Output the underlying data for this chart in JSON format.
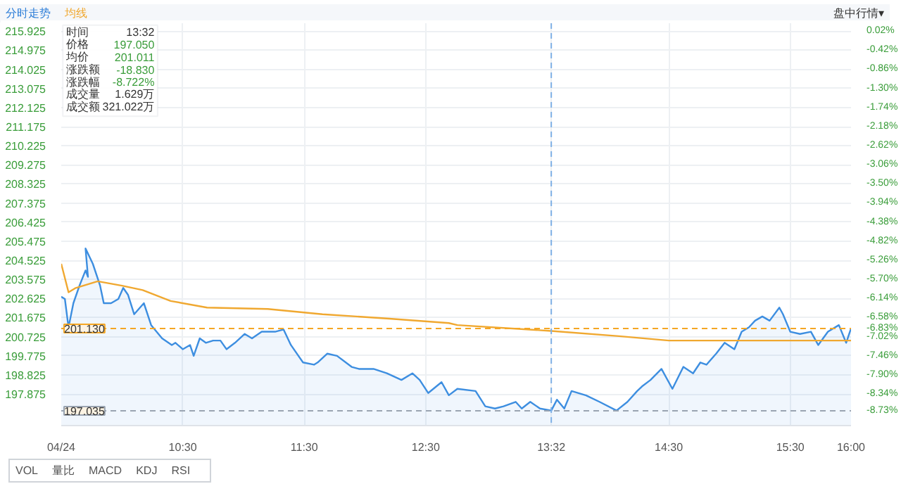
{
  "chart_data": {
    "type": "line",
    "annotations": [
      "分时走势",
      "均线",
      "盘中行情▾",
      "时间",
      "13:32",
      "价格",
      "197.050",
      "均价",
      "201.011",
      "涨跌额",
      "-18.830",
      "涨跌幅",
      "-8.722%",
      "成交量",
      "1.629万",
      "成交额",
      "321.022万",
      "VOL",
      "量比",
      "MACD",
      "KDJ",
      "RSI"
    ],
    "xlim": [
      9.5,
      16
    ],
    "xticks": [
      {
        "value": 9.5,
        "label": "04/24"
      },
      {
        "value": 10.5,
        "label": "10:30"
      },
      {
        "value": 11.5,
        "label": "11:30"
      },
      {
        "value": 12.5,
        "label": "12:30"
      },
      {
        "value": 13.533,
        "label": "13:32"
      },
      {
        "value": 14.5,
        "label": "14:30"
      },
      {
        "value": 15.5,
        "label": "15:30"
      },
      {
        "value": 16,
        "label": "16:00"
      }
    ],
    "ylim": [
      196.3,
      216.32
    ],
    "yticks": [
      215.925,
      214.975,
      214.025,
      213.075,
      212.125,
      211.175,
      210.225,
      209.275,
      208.325,
      207.375,
      206.425,
      205.475,
      204.525,
      203.575,
      202.625,
      201.675,
      200.725,
      199.775,
      198.825,
      197.875
    ],
    "y2lim": [
      -9.07,
      0.2
    ],
    "y2ticks": [
      {
        "value": 0.02,
        "label": "0.02%"
      },
      {
        "value": -0.42,
        "label": "-0.42%"
      },
      {
        "value": -0.86,
        "label": "-0.86%"
      },
      {
        "value": -1.3,
        "label": "-1.30%"
      },
      {
        "value": -1.74,
        "label": "-1.74%"
      },
      {
        "value": -2.18,
        "label": "-2.18%"
      },
      {
        "value": -2.62,
        "label": "-2.62%"
      },
      {
        "value": -3.06,
        "label": "-3.06%"
      },
      {
        "value": -3.5,
        "label": "-3.50%"
      },
      {
        "value": -3.94,
        "label": "-3.94%"
      },
      {
        "value": -4.38,
        "label": "-4.38%"
      },
      {
        "value": -4.82,
        "label": "-4.82%"
      },
      {
        "value": -5.26,
        "label": "-5.26%"
      },
      {
        "value": -5.7,
        "label": "-5.70%"
      },
      {
        "value": -6.14,
        "label": "-6.14%"
      },
      {
        "value": -6.58,
        "label": "-6.58%"
      },
      {
        "value": -6.83,
        "label": "-6.83%"
      },
      {
        "value": -7.02,
        "label": "-7.02%"
      },
      {
        "value": -7.46,
        "label": "-7.46%"
      },
      {
        "value": -7.9,
        "label": "-7.90%"
      },
      {
        "value": -8.34,
        "label": "-8.34%"
      },
      {
        "value": -8.73,
        "label": "-8.73%"
      }
    ],
    "grid": true,
    "ref_lines": [
      {
        "axis": "y",
        "value": 201.13,
        "label": "201.130",
        "color": "#f5a623",
        "line_style": "dashed"
      },
      {
        "axis": "y",
        "value": 197.035,
        "label": "197.035",
        "color": "#9aa4b1",
        "line_style": "dashed"
      },
      {
        "axis": "x",
        "value": 13.533,
        "label": null,
        "color": "#7fb0e6",
        "line_style": "dashed"
      }
    ],
    "series": [
      {
        "type": "area",
        "color": "#3d8ee0",
        "x": [
          9.5,
          9.53,
          9.56,
          9.6,
          9.65,
          9.7,
          9.72,
          9.7,
          9.76,
          9.82,
          9.85,
          9.91,
          9.97,
          10.01,
          10.05,
          10.1,
          10.18,
          10.24,
          10.33,
          10.41,
          10.44,
          10.5,
          10.56,
          10.59,
          10.64,
          10.69,
          10.75,
          10.81,
          10.86,
          10.93,
          11.01,
          11.07,
          11.15,
          11.2,
          11.26,
          11.33,
          11.39,
          11.49,
          11.58,
          11.61,
          11.69,
          11.77,
          11.89,
          11.95,
          12.07,
          12.18,
          12.3,
          12.39,
          12.45,
          12.52,
          12.63,
          12.69,
          12.76,
          12.91,
          12.99,
          13.07,
          13.14,
          13.24,
          13.29,
          13.36,
          13.44,
          13.533,
          13.58,
          13.64,
          13.7,
          13.82,
          13.93,
          14.07,
          14.16,
          14.24,
          14.28,
          14.35,
          14.44,
          14.53,
          14.62,
          14.7,
          14.76,
          14.81,
          14.89,
          14.96,
          15.04,
          15.1,
          15.16,
          15.21,
          15.27,
          15.33,
          15.41,
          15.44,
          15.5,
          15.58,
          15.67,
          15.73,
          15.81,
          15.9,
          15.96,
          16.0
        ],
        "values": [
          202.71,
          202.6,
          201.19,
          202.39,
          203.26,
          204.02,
          203.7,
          205.11,
          204.35,
          203.26,
          202.39,
          202.39,
          202.6,
          203.15,
          202.8,
          201.84,
          202.39,
          201.3,
          200.64,
          200.31,
          200.42,
          200.1,
          200.31,
          199.77,
          200.64,
          200.42,
          200.53,
          200.53,
          200.1,
          200.42,
          200.86,
          200.64,
          200.97,
          200.97,
          200.97,
          201.08,
          200.31,
          199.44,
          199.33,
          199.44,
          199.88,
          199.77,
          199.22,
          199.12,
          199.12,
          198.9,
          198.57,
          198.9,
          198.57,
          197.92,
          198.46,
          197.81,
          198.13,
          198.02,
          197.26,
          197.15,
          197.26,
          197.48,
          197.15,
          197.48,
          197.15,
          197.05,
          197.59,
          197.15,
          198.02,
          197.8,
          197.48,
          197.05,
          197.48,
          198.02,
          198.25,
          198.57,
          199.12,
          198.13,
          199.22,
          198.9,
          199.44,
          199.33,
          199.88,
          200.42,
          200.1,
          200.97,
          201.19,
          201.52,
          201.73,
          201.52,
          202.17,
          201.84,
          200.97,
          200.86,
          200.97,
          200.31,
          200.97,
          201.3,
          200.42,
          201.13
        ]
      },
      {
        "color": "#f0a830",
        "x": [
          9.5,
          9.56,
          9.62,
          9.8,
          10.0,
          10.17,
          10.4,
          10.7,
          11.2,
          11.65,
          12.2,
          12.69,
          12.76,
          13.533,
          14.09,
          14.5,
          15.04,
          16.0
        ],
        "values": [
          204.35,
          202.93,
          203.15,
          203.48,
          203.26,
          203.04,
          202.5,
          202.17,
          202.1,
          201.84,
          201.62,
          201.4,
          201.3,
          201.01,
          200.75,
          200.53,
          200.53,
          200.53
        ]
      }
    ]
  }
}
